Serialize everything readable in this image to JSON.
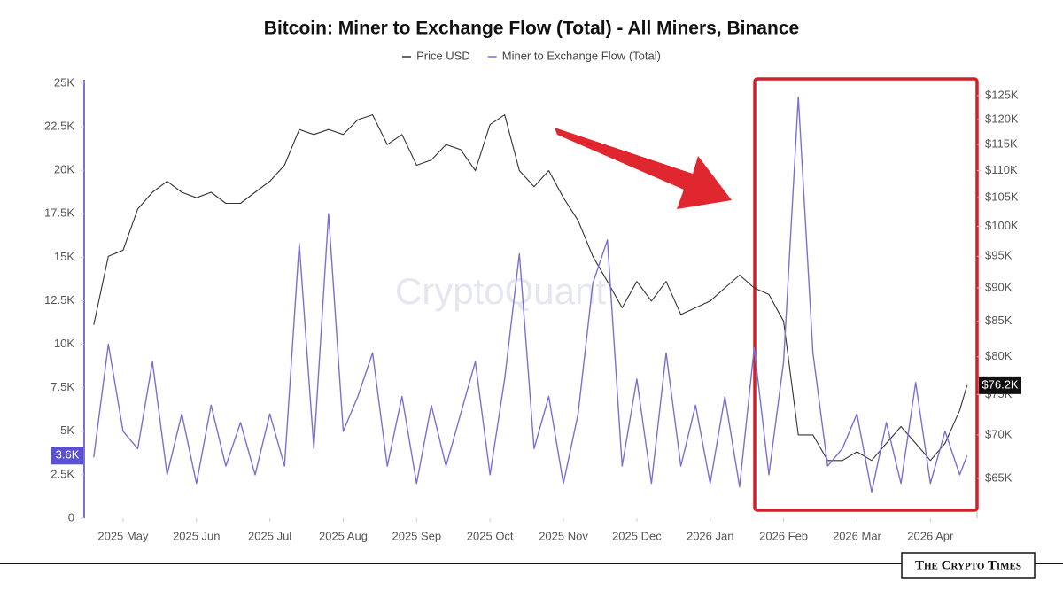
{
  "chart_data": {
    "type": "line",
    "title": "Bitcoin: Miner to Exchange Flow (Total) - All Miners, Binance",
    "watermark": "CryptoQuant",
    "source": "The Crypto Times",
    "x": [
      0.6,
      0.8,
      1.0,
      1.2,
      1.4,
      1.6,
      1.8,
      2.0,
      2.2,
      2.4,
      2.6,
      2.8,
      3.0,
      3.2,
      3.4,
      3.6,
      3.8,
      4.0,
      4.2,
      4.4,
      4.6,
      4.8,
      5.0,
      5.2,
      5.4,
      5.6,
      5.8,
      6.0,
      6.2,
      6.4,
      6.6,
      6.8,
      7.0,
      7.2,
      7.4,
      7.6,
      7.8,
      8.0,
      8.2,
      8.4,
      8.6,
      8.8,
      9.0,
      9.2,
      9.4,
      9.6,
      9.8,
      10.0,
      10.2,
      10.4,
      10.6,
      10.8,
      11.0,
      11.2,
      11.4,
      11.6,
      11.8,
      12.0,
      12.2,
      12.4,
      12.5
    ],
    "xlim": [
      0.47,
      12.6
    ],
    "xticks": [
      {
        "value": 1,
        "label": "2025 May"
      },
      {
        "value": 2,
        "label": "2025 Jun"
      },
      {
        "value": 3,
        "label": "2025 Jul"
      },
      {
        "value": 4,
        "label": "2025 Aug"
      },
      {
        "value": 5,
        "label": "2025 Sep"
      },
      {
        "value": 6,
        "label": "2025 Oct"
      },
      {
        "value": 7,
        "label": "2025 Nov"
      },
      {
        "value": 8,
        "label": "2025 Dec"
      },
      {
        "value": 9,
        "label": "2026 Jan"
      },
      {
        "value": 10,
        "label": "2026 Feb"
      },
      {
        "value": 11,
        "label": "2026 Mar"
      },
      {
        "value": 12,
        "label": "2026 Apr"
      }
    ],
    "ylim": [
      0,
      25000
    ],
    "yticks": [
      0,
      {
        "value": 2500,
        "label": "2.5K"
      },
      {
        "value": 5000,
        "label": "5K"
      },
      {
        "value": 7500,
        "label": "7.5K"
      },
      {
        "value": 10000,
        "label": "10K"
      },
      {
        "value": 12500,
        "label": "12.5K"
      },
      {
        "value": 15000,
        "label": "15K"
      },
      {
        "value": 17500,
        "label": "17.5K"
      },
      {
        "value": 20000,
        "label": "20K"
      },
      {
        "value": 22500,
        "label": "22.5K"
      },
      {
        "value": 25000,
        "label": "25K"
      }
    ],
    "y2lim": [
      60700,
      127700
    ],
    "y2_log": true,
    "y2ticks": [
      {
        "value": 65000,
        "label": "$65K"
      },
      {
        "value": 70000,
        "label": "$70K"
      },
      {
        "value": 75000,
        "label": "$75K"
      },
      {
        "value": 80000,
        "label": "$80K"
      },
      {
        "value": 85000,
        "label": "$85K"
      },
      {
        "value": 90000,
        "label": "$90K"
      },
      {
        "value": 95000,
        "label": "$95K"
      },
      {
        "value": 100000,
        "label": "$100K"
      },
      {
        "value": 105000,
        "label": "$105K"
      },
      {
        "value": 110000,
        "label": "$110K"
      },
      {
        "value": 115000,
        "label": "$115K"
      },
      {
        "value": 120000,
        "label": "$120K"
      },
      {
        "value": 125000,
        "label": "$125K"
      }
    ],
    "series": [
      {
        "name": "Price USD",
        "color": "#333333",
        "axis": "y2",
        "current_label": "$76.2K",
        "values": [
          84500,
          95000,
          96000,
          103000,
          106000,
          108000,
          106000,
          105000,
          106000,
          104000,
          104000,
          106000,
          108000,
          111000,
          118000,
          117000,
          118000,
          117000,
          120000,
          121000,
          115000,
          117000,
          111000,
          112000,
          115000,
          114000,
          110000,
          119000,
          121000,
          110000,
          107000,
          110000,
          105000,
          101000,
          95000,
          91000,
          87000,
          91000,
          88000,
          91000,
          86000,
          87000,
          88000,
          90000,
          92000,
          90000,
          89000,
          85000,
          70000,
          70000,
          67000,
          67000,
          68000,
          67000,
          69000,
          71000,
          69000,
          67000,
          69000,
          73000,
          76200
        ]
      },
      {
        "name": "Miner to Exchange Flow (Total)",
        "color": "#7b6fd6",
        "axis": "y",
        "current_label": "3.6K",
        "values": [
          3500,
          10000,
          5000,
          4000,
          9000,
          2500,
          6000,
          2000,
          6500,
          3000,
          5500,
          2500,
          6000,
          3000,
          15800,
          4000,
          17500,
          5000,
          7000,
          9500,
          3000,
          7000,
          2000,
          6500,
          3000,
          6000,
          9000,
          2500,
          8000,
          15200,
          4000,
          7000,
          2000,
          6000,
          13500,
          16000,
          3000,
          8000,
          2000,
          9500,
          3000,
          6500,
          2000,
          7000,
          1800,
          9800,
          2500,
          9000,
          24200,
          9500,
          3000,
          4000,
          6000,
          1500,
          5500,
          2000,
          7800,
          2000,
          5000,
          2500,
          3600
        ]
      }
    ]
  }
}
